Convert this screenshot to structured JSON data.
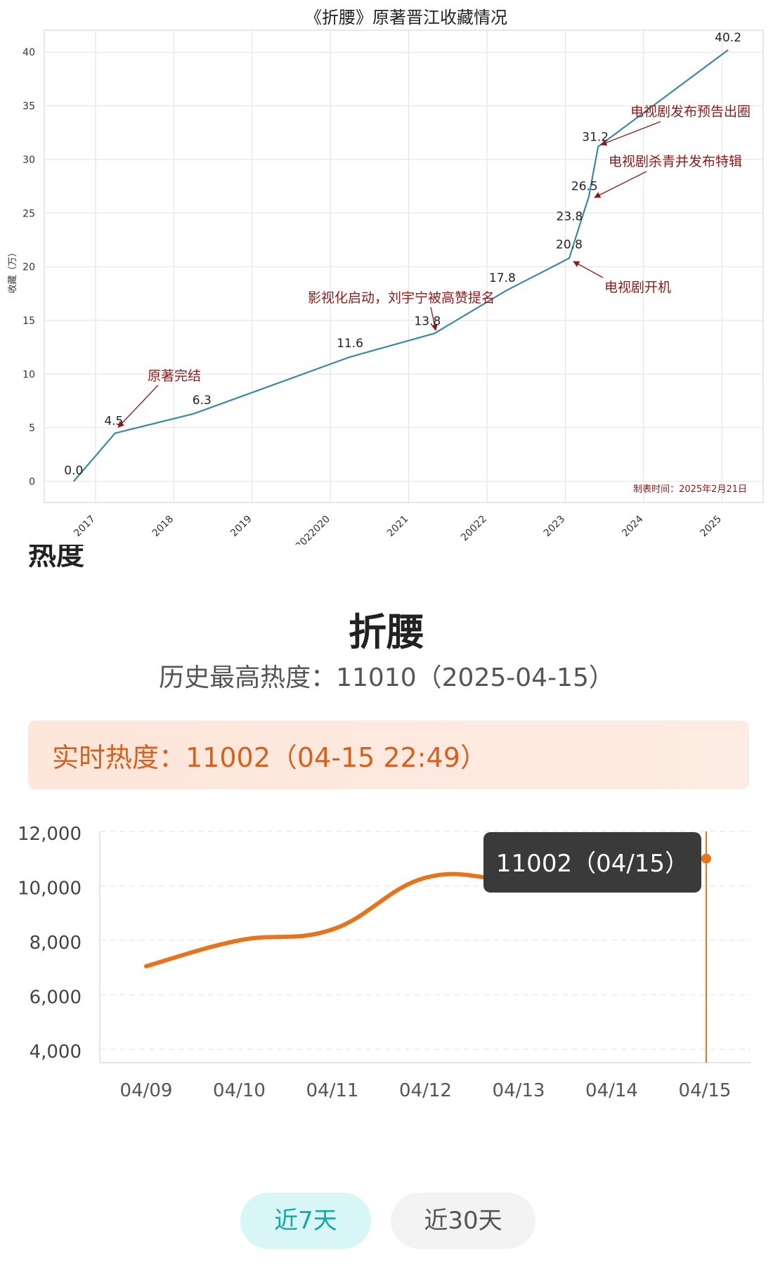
{
  "chart_data": [
    {
      "type": "line",
      "title": "《折腰》原著晋江收藏情况",
      "ylabel": "收藏（万）",
      "xlabel": "",
      "ylim": [
        -2,
        42.5
      ],
      "yticks": [
        0,
        5,
        10,
        15,
        20,
        25,
        30,
        35,
        40
      ],
      "x_tick_labels": [
        "2017",
        "2018",
        "2019",
        "2022020",
        "2021",
        "20022",
        "2023",
        "2024",
        "2025"
      ],
      "grid": true,
      "line_color": "#3a87a8",
      "annotation_color": "#8b1a1a",
      "series": [
        {
          "points": [
            {
              "x": 2016.72,
              "y": 0.0,
              "label": "0.0"
            },
            {
              "x": 2017.25,
              "y": 4.5,
              "label": "4.5"
            },
            {
              "x": 2018.25,
              "y": 6.3,
              "label": "6.3"
            },
            {
              "x": 2020.25,
              "y": 11.6,
              "label": "11.6"
            },
            {
              "x": 2021.33,
              "y": 13.8,
              "label": "13.8"
            },
            {
              "x": 2022.25,
              "y": 17.8,
              "label": "17.8"
            },
            {
              "x": 2023.05,
              "y": 20.8,
              "label": "20.8"
            },
            {
              "x": 2023.18,
              "y": 23.8,
              "label": "23.8"
            },
            {
              "x": 2023.3,
              "y": 26.5,
              "label": "26.5"
            },
            {
              "x": 2023.42,
              "y": 31.2,
              "label": "31.2"
            },
            {
              "x": 2025.08,
              "y": 40.2,
              "label": "40.2"
            }
          ]
        }
      ],
      "annotations": [
        {
          "text": "原著完结",
          "point_index": 1
        },
        {
          "text": "影视化启动，刘宇宁被高赞提名",
          "point_index": 4
        },
        {
          "text": "电视剧开机",
          "point_index": 6
        },
        {
          "text": "电视剧杀青并发布特辑",
          "point_index": 8
        },
        {
          "text": "电视剧发布预告出圈",
          "point_index": 9
        }
      ],
      "footnote": "制表时间：2025年2月21日"
    },
    {
      "type": "line",
      "title": "折腰",
      "ylim": [
        3500,
        12000
      ],
      "yticks": [
        4000,
        6000,
        8000,
        10000,
        12000
      ],
      "ytick_labels": [
        "4,000",
        "6,000",
        "8,000",
        "10,000",
        "12,000"
      ],
      "categories": [
        "04/09",
        "04/10",
        "04/11",
        "04/12",
        "04/13",
        "04/14",
        "04/15"
      ],
      "line_color": "#e8731a",
      "grid": true,
      "series": [
        {
          "values": [
            7050,
            8000,
            8400,
            10300,
            10250,
            10750,
            11002
          ]
        }
      ],
      "tooltip": {
        "text": "11002（04/15）",
        "index": 6
      }
    }
  ],
  "top_panel": {
    "clipped_heading": "热度"
  },
  "heat_panel": {
    "title": "折腰",
    "history_heat": "历史最高热度：11010（2025-04-15）",
    "realtime_heat": "实时热度：11002（04-15 22:49）",
    "range_buttons": [
      "近7天",
      "近30天"
    ],
    "active_range": "近7天"
  }
}
